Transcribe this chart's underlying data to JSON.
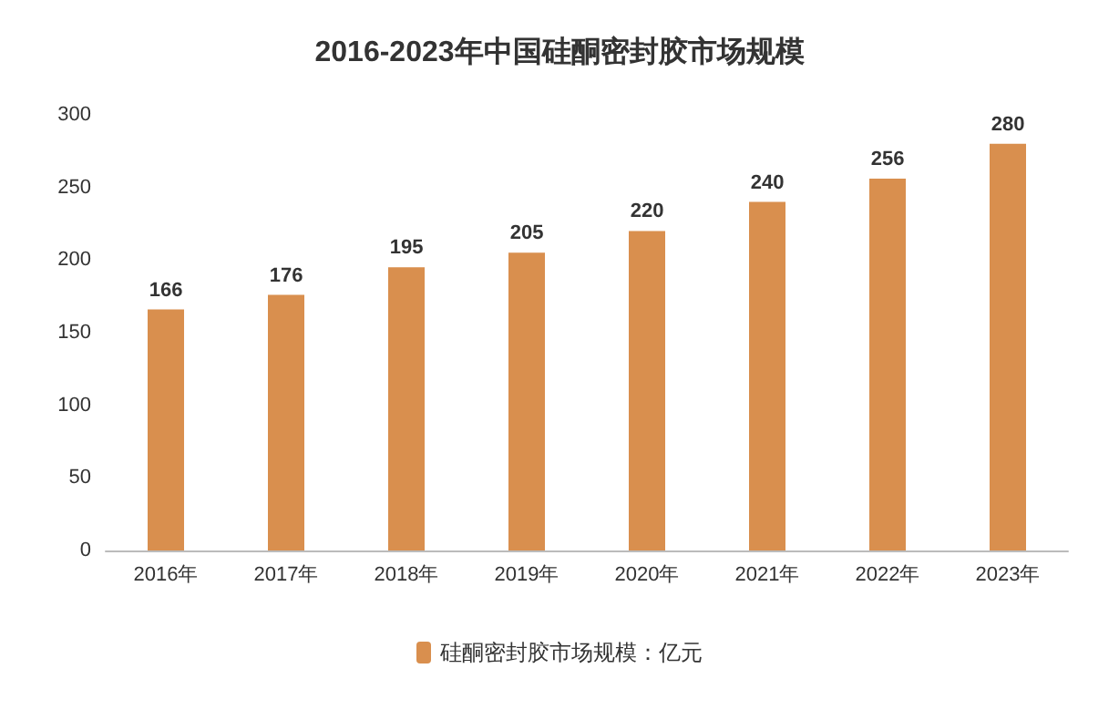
{
  "chart_data": {
    "type": "bar",
    "title": "2016-2023年中国硅酮密封胶市场规模",
    "categories": [
      "2016年",
      "2017年",
      "2018年",
      "2019年",
      "2020年",
      "2021年",
      "2022年",
      "2023年"
    ],
    "series": [
      {
        "name": "硅酮密封胶市场规模：亿元",
        "color": "#d98f4e",
        "values": [
          166,
          176,
          195,
          205,
          220,
          240,
          256,
          280
        ]
      }
    ],
    "ylim": [
      0,
      300
    ],
    "yticks": [
      0,
      50,
      100,
      150,
      200,
      250,
      300
    ],
    "data_labels": true,
    "legend": "bottom",
    "grid": false
  }
}
